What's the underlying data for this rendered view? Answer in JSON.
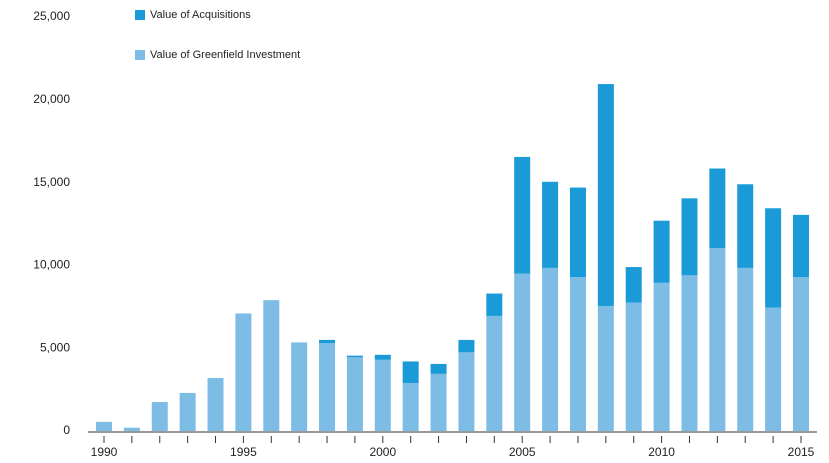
{
  "chart_data": {
    "type": "bar",
    "stacked": true,
    "x": [
      1990,
      1991,
      1992,
      1993,
      1994,
      1995,
      1996,
      1997,
      1998,
      1999,
      2000,
      2001,
      2002,
      2003,
      2004,
      2005,
      2006,
      2007,
      2008,
      2009,
      2010,
      2011,
      2012,
      2013,
      2014,
      2015
    ],
    "series": [
      {
        "name": "Value of Greenfield Investment",
        "color": "#7dbde5",
        "values": [
          550,
          200,
          1750,
          2300,
          3200,
          7100,
          7900,
          5350,
          5300,
          4450,
          4300,
          2900,
          3450,
          4750,
          6950,
          9500,
          9850,
          9300,
          7550,
          7750,
          8950,
          9400,
          11050,
          9850,
          7450,
          9300
        ]
      },
      {
        "name": "Value of Acquisitions",
        "color": "#1a9ad6",
        "values": [
          0,
          0,
          0,
          0,
          0,
          0,
          0,
          0,
          200,
          100,
          300,
          1300,
          600,
          750,
          1350,
          7050,
          5200,
          5400,
          13400,
          2150,
          3750,
          4650,
          4800,
          5050,
          6000,
          3750
        ]
      }
    ],
    "xlim": [
      1990,
      2015
    ],
    "xticks": [
      1990,
      1995,
      2000,
      2005,
      2010,
      2015
    ],
    "ylim": [
      0,
      25000
    ],
    "yticks": [
      0,
      {
        "value": 5000,
        "label": "5,000"
      },
      {
        "value": 10000,
        "label": "10,000"
      },
      {
        "value": 15000,
        "label": "15,000"
      },
      {
        "value": 20000,
        "label": "20,000"
      },
      {
        "value": 25000,
        "label": "25,000"
      }
    ],
    "grid": false
  }
}
